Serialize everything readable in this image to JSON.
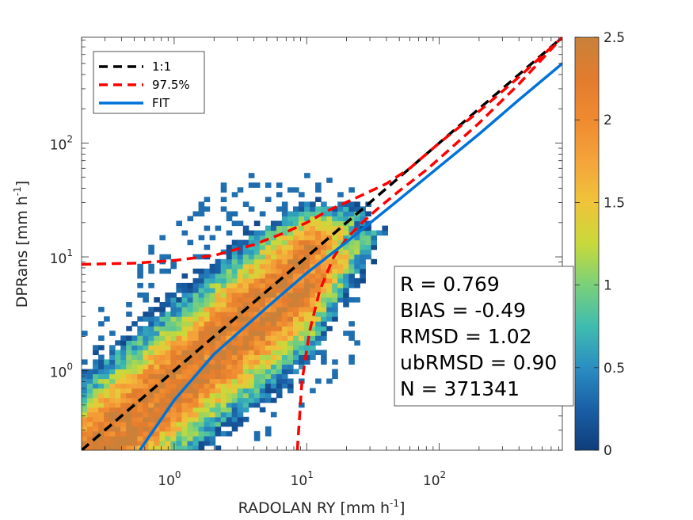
{
  "chart_data": {
    "type": "heatmap",
    "xlabel": "RADOLAN RY [mm h",
    "xlabel_sup": "-1",
    "xlabel_end": "]",
    "ylabel": "DPRans [mm h",
    "ylabel_sup": "-1",
    "ylabel_end": "]",
    "x_scale": "log",
    "y_scale": "log",
    "xlim": [
      0.2,
      850
    ],
    "ylim": [
      0.2,
      850
    ],
    "x_ticks": [
      {
        "value": 1,
        "base": "10",
        "exp": "0"
      },
      {
        "value": 10,
        "base": "10",
        "exp": "1"
      },
      {
        "value": 100,
        "base": "10",
        "exp": "2"
      }
    ],
    "y_ticks": [
      {
        "value": 1,
        "base": "10",
        "exp": "0"
      },
      {
        "value": 10,
        "base": "10",
        "exp": "1"
      },
      {
        "value": 100,
        "base": "10",
        "exp": "2"
      }
    ],
    "legend": {
      "placement": "top-left",
      "entries": [
        {
          "label": "1:1",
          "color": "#000000",
          "style": "dashed"
        },
        {
          "label": "97.5%",
          "color": "#ff0000",
          "style": "dashed"
        },
        {
          "label": "FIT",
          "color": "#0072d8",
          "style": "solid"
        }
      ]
    },
    "series": [
      {
        "name": "1:1",
        "points": [
          [
            0.2,
            0.2
          ],
          [
            850,
            850
          ]
        ]
      },
      {
        "name": "97.5%",
        "points": [
          [
            0.2,
            8.6
          ],
          [
            0.5,
            8.8
          ],
          [
            1,
            9.3
          ],
          [
            2,
            10.3
          ],
          [
            4,
            12.8
          ],
          [
            7,
            16.5
          ],
          [
            10,
            20
          ],
          [
            15,
            26
          ],
          [
            25,
            34
          ],
          [
            40,
            44
          ],
          [
            60,
            60
          ],
          [
            100,
            100
          ],
          [
            200,
            190
          ],
          [
            400,
            380
          ],
          [
            850,
            850
          ]
        ]
      },
      {
        "name": "97.5%",
        "points": [
          [
            8.5,
            0.2
          ],
          [
            9.2,
            0.8
          ],
          [
            10.5,
            2.2
          ],
          [
            12.5,
            5
          ],
          [
            16,
            10
          ],
          [
            20,
            14.5
          ],
          [
            25,
            19
          ],
          [
            35,
            27
          ],
          [
            50,
            38
          ],
          [
            80,
            58
          ],
          [
            120,
            88
          ],
          [
            200,
            150
          ],
          [
            400,
            330
          ],
          [
            850,
            850
          ]
        ]
      },
      {
        "name": "FIT",
        "points": [
          [
            0.55,
            0.2
          ],
          [
            1,
            0.55
          ],
          [
            2,
            1.4
          ],
          [
            5,
            3.6
          ],
          [
            10,
            7.2
          ],
          [
            20,
            13.5
          ],
          [
            50,
            32
          ],
          [
            100,
            62
          ],
          [
            200,
            120
          ],
          [
            400,
            240
          ],
          [
            850,
            500
          ]
        ]
      }
    ],
    "colorbar": {
      "range": [
        0,
        2.5
      ],
      "ticks": [
        "0",
        "0.5",
        "1",
        "1.5",
        "2",
        "2.5"
      ],
      "colors": [
        "#0f3d7a",
        "#1a5fa6",
        "#2a8ec2",
        "#3fbcb0",
        "#7ad07a",
        "#c8d93a",
        "#f0c43a",
        "#f4a43a",
        "#f08a30",
        "#e27c2e",
        "#c8813a"
      ]
    },
    "stats": [
      "R = 0.769",
      "BIAS = -0.49",
      "RMSD = 1.02",
      "ubRMSD = 0.90",
      "N = 371341"
    ]
  }
}
